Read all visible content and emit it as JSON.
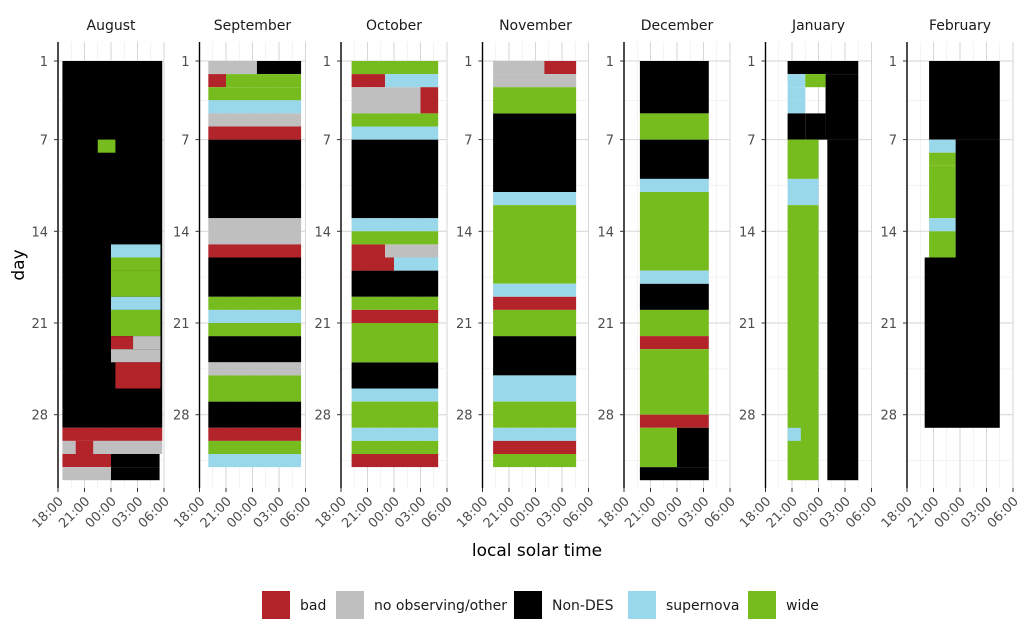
{
  "chart_data": {
    "type": "heatmap",
    "description_labels": {
      "xlabel": "local solar time",
      "ylabel": "day"
    },
    "x_ticks": [
      "18:00",
      "21:00",
      "00:00",
      "03:00",
      "06:00"
    ],
    "x_range_hours": [
      18,
      30
    ],
    "y_ticks": [
      "1",
      "7",
      "14",
      "21",
      "28"
    ],
    "y_tick_values": [
      1,
      7,
      14,
      21,
      28
    ],
    "y_range_days": [
      1,
      31
    ],
    "categories": [
      "bad",
      "no observing/other",
      "Non-DES",
      "supernova",
      "wide"
    ],
    "legend": [
      {
        "label": "bad",
        "color": "#b2232a"
      },
      {
        "label": "no observing/other",
        "color": "#bfbfbf"
      },
      {
        "label": "Non-DES",
        "color": "#000000"
      },
      {
        "label": "supernova",
        "color": "#99d8ea"
      },
      {
        "label": "wide",
        "color": "#77bc1f"
      }
    ],
    "panels": [
      {
        "month": "August",
        "dark": [
          [
            1,
            28,
            18.5,
            29.8
          ]
        ],
        "segs": [
          [
            7,
            7,
            22.5,
            24.5,
            "wide"
          ],
          [
            15,
            15,
            24.0,
            29.6,
            "supernova"
          ],
          [
            16,
            16,
            24.0,
            29.6,
            "wide"
          ],
          [
            17,
            18,
            24.0,
            29.6,
            "wide"
          ],
          [
            19,
            19,
            24.0,
            29.6,
            "supernova"
          ],
          [
            20,
            20,
            24.0,
            29.6,
            "wide"
          ],
          [
            21,
            21,
            24.0,
            29.6,
            "wide"
          ],
          [
            22,
            22,
            24.0,
            26.5,
            "bad"
          ],
          [
            22,
            22,
            26.5,
            29.6,
            "no observing/other"
          ],
          [
            23,
            23,
            24.0,
            29.6,
            "no observing/other"
          ],
          [
            24,
            25,
            24.5,
            29.6,
            "bad"
          ],
          [
            29,
            29,
            18.5,
            29.8,
            "bad"
          ],
          [
            30,
            30,
            18.5,
            20.0,
            "no observing/other"
          ],
          [
            30,
            30,
            20.0,
            22.0,
            "bad"
          ],
          [
            30,
            30,
            22.0,
            29.8,
            "no observing/other"
          ],
          [
            31,
            31,
            18.5,
            24.0,
            "bad"
          ],
          [
            31,
            31,
            24.0,
            29.5,
            "black"
          ],
          [
            32,
            32,
            18.5,
            24.0,
            "no observing/other"
          ],
          [
            32,
            32,
            24.0,
            29.5,
            "black"
          ]
        ]
      },
      {
        "month": "September",
        "dark": [
          [
            7,
            12,
            19.0,
            29.5
          ],
          [
            16,
            18,
            19.0,
            29.5
          ],
          [
            22,
            23,
            19.0,
            29.5
          ],
          [
            27,
            28,
            19.0,
            29.5
          ]
        ],
        "segs": [
          [
            1,
            1,
            19.0,
            24.5,
            "no observing/other"
          ],
          [
            1,
            1,
            24.5,
            29.5,
            "black"
          ],
          [
            2,
            2,
            19.0,
            21.0,
            "bad"
          ],
          [
            2,
            2,
            21.0,
            29.5,
            "wide"
          ],
          [
            3,
            3,
            19.0,
            29.5,
            "wide"
          ],
          [
            4,
            4,
            19.0,
            29.5,
            "supernova"
          ],
          [
            5,
            5,
            19.0,
            29.5,
            "no observing/other"
          ],
          [
            6,
            6,
            19.0,
            29.5,
            "bad"
          ],
          [
            13,
            14,
            19.0,
            29.5,
            "no observing/other"
          ],
          [
            15,
            15,
            19.0,
            29.5,
            "bad"
          ],
          [
            19,
            19,
            19.0,
            29.5,
            "wide"
          ],
          [
            20,
            20,
            19.0,
            29.5,
            "supernova"
          ],
          [
            21,
            21,
            19.0,
            29.5,
            "wide"
          ],
          [
            24,
            24,
            19.0,
            29.5,
            "no observing/other"
          ],
          [
            25,
            26,
            19.0,
            29.5,
            "wide"
          ],
          [
            29,
            29,
            19.0,
            29.5,
            "bad"
          ],
          [
            30,
            30,
            19.0,
            29.5,
            "wide"
          ],
          [
            31,
            31,
            19.0,
            29.5,
            "supernova"
          ]
        ]
      },
      {
        "month": "October",
        "dark": [
          [
            7,
            12,
            19.2,
            29.0
          ],
          [
            17,
            18,
            19.2,
            29.0
          ],
          [
            24,
            25,
            19.2,
            29.0
          ]
        ],
        "segs": [
          [
            1,
            1,
            19.2,
            29.0,
            "wide"
          ],
          [
            2,
            2,
            19.2,
            23.0,
            "bad"
          ],
          [
            2,
            2,
            23.0,
            29.0,
            "supernova"
          ],
          [
            3,
            4,
            19.2,
            27.0,
            "no observing/other"
          ],
          [
            3,
            4,
            27.0,
            29.0,
            "bad"
          ],
          [
            5,
            5,
            19.2,
            29.0,
            "wide"
          ],
          [
            6,
            6,
            19.2,
            29.0,
            "supernova"
          ],
          [
            13,
            13,
            19.2,
            29.0,
            "supernova"
          ],
          [
            14,
            14,
            19.2,
            29.0,
            "wide"
          ],
          [
            15,
            15,
            19.2,
            23.0,
            "bad"
          ],
          [
            15,
            15,
            23.0,
            29.0,
            "no observing/other"
          ],
          [
            16,
            16,
            19.2,
            24.0,
            "bad"
          ],
          [
            16,
            16,
            24.0,
            29.0,
            "supernova"
          ],
          [
            19,
            19,
            19.2,
            29.0,
            "wide"
          ],
          [
            20,
            20,
            19.2,
            29.0,
            "bad"
          ],
          [
            21,
            23,
            19.2,
            29.0,
            "wide"
          ],
          [
            26,
            26,
            19.2,
            29.0,
            "supernova"
          ],
          [
            27,
            28,
            19.2,
            29.0,
            "wide"
          ],
          [
            29,
            29,
            19.2,
            29.0,
            "supernova"
          ],
          [
            30,
            30,
            19.2,
            29.0,
            "wide"
          ],
          [
            31,
            31,
            19.2,
            29.0,
            "bad"
          ]
        ]
      },
      {
        "month": "November",
        "dark": [
          [
            5,
            10,
            19.2,
            28.6
          ],
          [
            22,
            24,
            19.2,
            28.6
          ]
        ],
        "segs": [
          [
            1,
            1,
            19.2,
            25.0,
            "no observing/other"
          ],
          [
            1,
            1,
            25.0,
            28.6,
            "bad"
          ],
          [
            2,
            2,
            19.2,
            28.6,
            "no observing/other"
          ],
          [
            3,
            4,
            19.2,
            28.6,
            "wide"
          ],
          [
            11,
            11,
            19.2,
            28.6,
            "supernova"
          ],
          [
            12,
            17,
            19.2,
            28.6,
            "wide"
          ],
          [
            18,
            18,
            19.2,
            28.6,
            "supernova"
          ],
          [
            19,
            19,
            19.2,
            28.6,
            "bad"
          ],
          [
            20,
            21,
            19.2,
            28.6,
            "wide"
          ],
          [
            25,
            25,
            19.2,
            28.6,
            "supernova"
          ],
          [
            26,
            26,
            19.2,
            28.6,
            "supernova"
          ],
          [
            27,
            28,
            19.2,
            28.6,
            "wide"
          ],
          [
            29,
            29,
            19.2,
            28.6,
            "supernova"
          ],
          [
            30,
            30,
            19.2,
            28.6,
            "bad"
          ],
          [
            31,
            31,
            19.2,
            28.6,
            "wide"
          ]
        ]
      },
      {
        "month": "December",
        "dark": [
          [
            1,
            4,
            19.8,
            27.6
          ],
          [
            7,
            9,
            19.8,
            27.6
          ],
          [
            18,
            19,
            19.8,
            27.6
          ],
          [
            32,
            32,
            19.8,
            27.6
          ]
        ],
        "segs": [
          [
            5,
            5,
            19.8,
            27.6,
            "wide"
          ],
          [
            6,
            6,
            19.8,
            27.6,
            "wide"
          ],
          [
            10,
            10,
            19.8,
            27.6,
            "supernova"
          ],
          [
            11,
            16,
            19.8,
            27.6,
            "wide"
          ],
          [
            17,
            17,
            19.8,
            27.6,
            "supernova"
          ],
          [
            20,
            21,
            19.8,
            27.6,
            "wide"
          ],
          [
            22,
            22,
            19.8,
            27.6,
            "bad"
          ],
          [
            23,
            27,
            19.8,
            27.6,
            "wide"
          ],
          [
            28,
            28,
            19.8,
            27.6,
            "bad"
          ],
          [
            29,
            31,
            19.8,
            24.0,
            "wide"
          ],
          [
            29,
            31,
            24.0,
            27.6,
            "black"
          ]
        ]
      },
      {
        "month": "January",
        "dark": [
          [
            1,
            1,
            20.5,
            28.5
          ],
          [
            2,
            6,
            24.8,
            28.5
          ],
          [
            7,
            32,
            25.0,
            28.5
          ]
        ],
        "segs": [
          [
            2,
            2,
            20.5,
            22.5,
            "supernova"
          ],
          [
            2,
            2,
            22.5,
            24.8,
            "wide"
          ],
          [
            3,
            3,
            20.5,
            22.5,
            "supernova"
          ],
          [
            4,
            4,
            20.5,
            22.5,
            "supernova"
          ],
          [
            5,
            6,
            20.5,
            22.5,
            "black"
          ],
          [
            5,
            6,
            22.5,
            24.8,
            "black"
          ],
          [
            7,
            9,
            20.5,
            24.0,
            "wide"
          ],
          [
            10,
            11,
            20.5,
            24.0,
            "supernova"
          ],
          [
            12,
            30,
            20.5,
            24.0,
            "wide"
          ],
          [
            29,
            29,
            20.5,
            22.0,
            "supernova"
          ],
          [
            31,
            32,
            20.5,
            24.0,
            "wide"
          ]
        ]
      },
      {
        "month": "February",
        "dark": [
          [
            1,
            6,
            20.5,
            28.5
          ],
          [
            7,
            15,
            23.5,
            28.5
          ],
          [
            16,
            28,
            20.0,
            28.5
          ]
        ],
        "segs": [
          [
            7,
            7,
            20.5,
            23.5,
            "supernova"
          ],
          [
            8,
            8,
            20.5,
            23.5,
            "wide"
          ],
          [
            9,
            10,
            20.5,
            23.5,
            "wide"
          ],
          [
            11,
            12,
            20.5,
            23.5,
            "wide"
          ],
          [
            13,
            13,
            20.5,
            23.5,
            "supernova"
          ],
          [
            14,
            15,
            20.5,
            23.5,
            "wide"
          ]
        ]
      }
    ]
  }
}
